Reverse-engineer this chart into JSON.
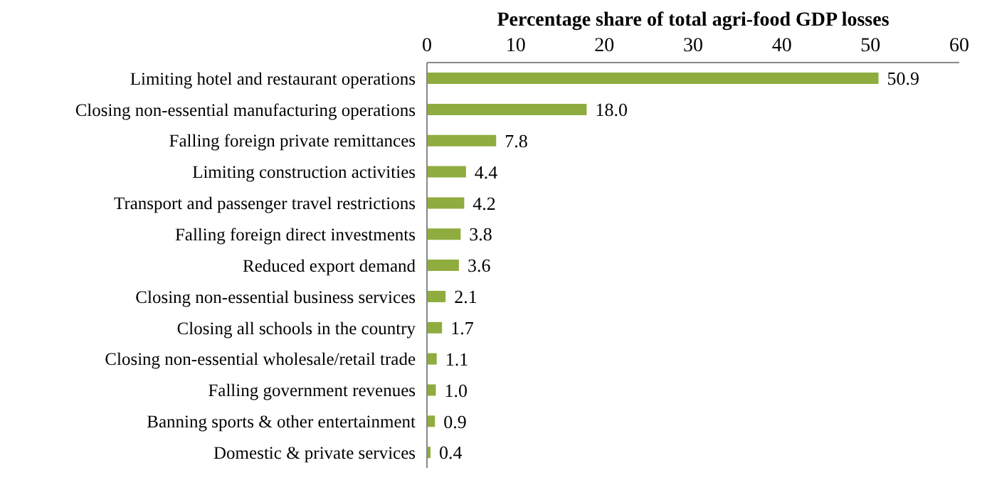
{
  "chart_data": {
    "type": "bar",
    "orientation": "horizontal",
    "xlabel": "Percentage share of total agri-food GDP losses",
    "categories": [
      "Limiting hotel and restaurant operations",
      "Closing non-essential manufacturing operations",
      "Falling foreign private remittances",
      "Limiting construction activities",
      "Transport and passenger travel restrictions",
      "Falling foreign direct investments",
      "Reduced export demand",
      "Closing non-essential business services",
      "Closing all schools in the country",
      "Closing non-essential wholesale/retail trade",
      "Falling government revenues",
      "Banning sports & other entertainment",
      "Domestic & private services"
    ],
    "values": [
      50.9,
      18.0,
      7.8,
      4.4,
      4.2,
      3.8,
      3.6,
      2.1,
      1.7,
      1.1,
      1.0,
      0.9,
      0.4
    ],
    "value_labels": [
      "50.9",
      "18.0",
      "7.8",
      "4.4",
      "4.2",
      "3.8",
      "3.6",
      "2.1",
      "1.7",
      "1.1",
      "1.0",
      "0.9",
      "0.4"
    ],
    "color": "#8fac3e",
    "xlim": [
      0,
      60
    ],
    "xticks": [
      0,
      10,
      20,
      30,
      40,
      50,
      60
    ],
    "grid": false
  }
}
